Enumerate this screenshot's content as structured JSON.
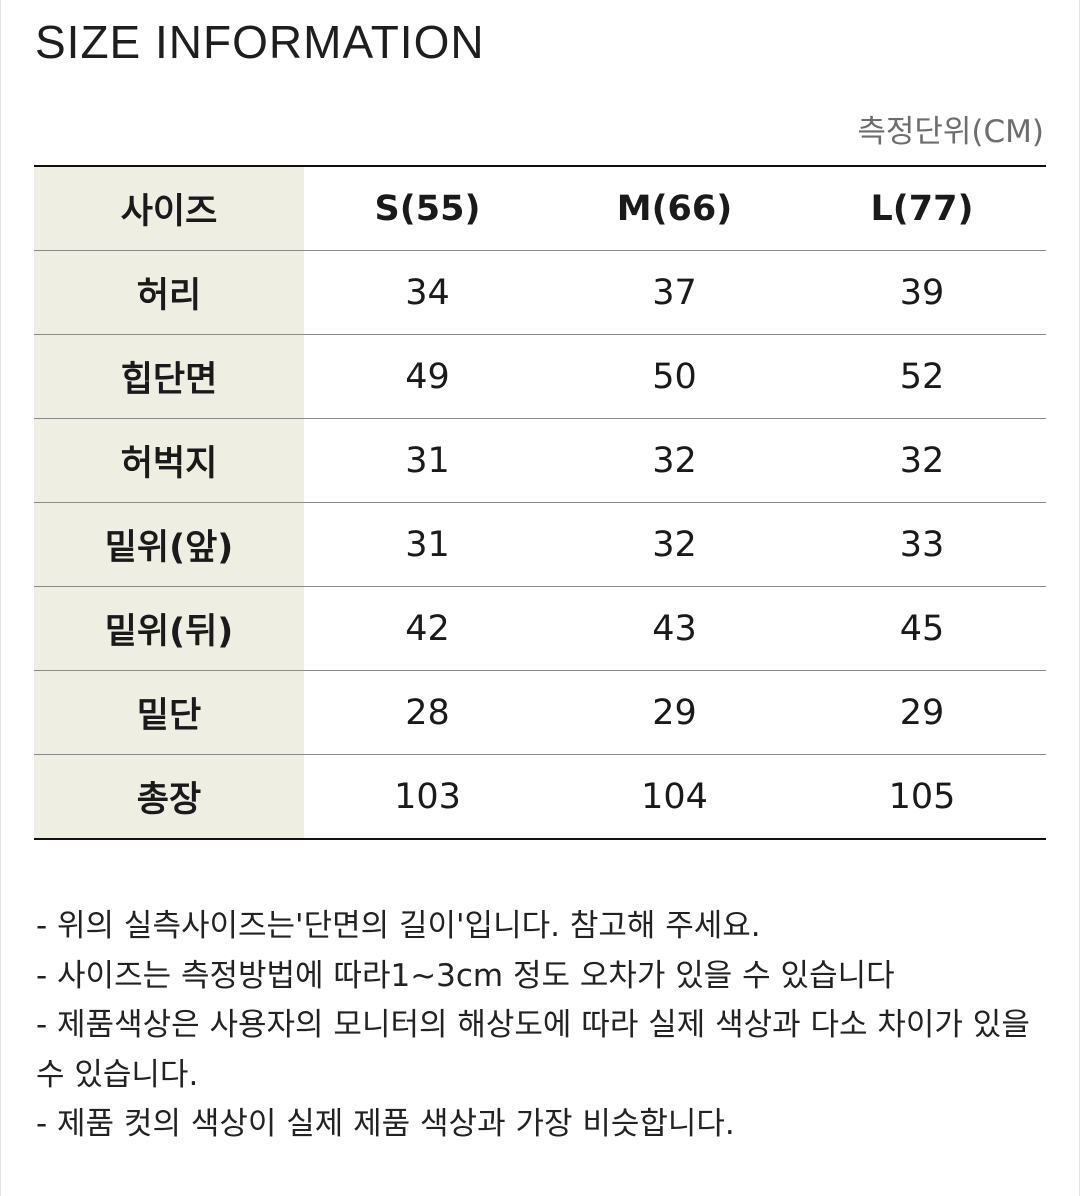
{
  "title": "SIZE INFORMATION",
  "unit_label": "측정단위(CM)",
  "table": {
    "corner_label": "사이즈",
    "columns": [
      "S(55)",
      "M(66)",
      "L(77)"
    ],
    "rows": [
      {
        "label": "허리",
        "values": [
          "34",
          "37",
          "39"
        ]
      },
      {
        "label": "힙단면",
        "values": [
          "49",
          "50",
          "52"
        ]
      },
      {
        "label": "허벅지",
        "values": [
          "31",
          "32",
          "32"
        ]
      },
      {
        "label": "밑위(앞)",
        "values": [
          "31",
          "32",
          "33"
        ]
      },
      {
        "label": "밑위(뒤)",
        "values": [
          "42",
          "43",
          "45"
        ]
      },
      {
        "label": "밑단",
        "values": [
          "28",
          "29",
          "29"
        ]
      },
      {
        "label": "총장",
        "values": [
          "103",
          "104",
          "105"
        ]
      }
    ]
  },
  "notes": [
    "- 위의 실측사이즈는'단면의 길이'입니다. 참고해 주세요.",
    "- 사이즈는 측정방법에 따라1~3cm 정도 오차가 있을 수 있습니다",
    "- 제품색상은 사용자의 모니터의 해상도에 따라 실제 색상과 다소 차이가 있을 수 있습니다.",
    "- 제품 컷의 색상이 실제 제품 색상과 가장 비슷합니다."
  ]
}
